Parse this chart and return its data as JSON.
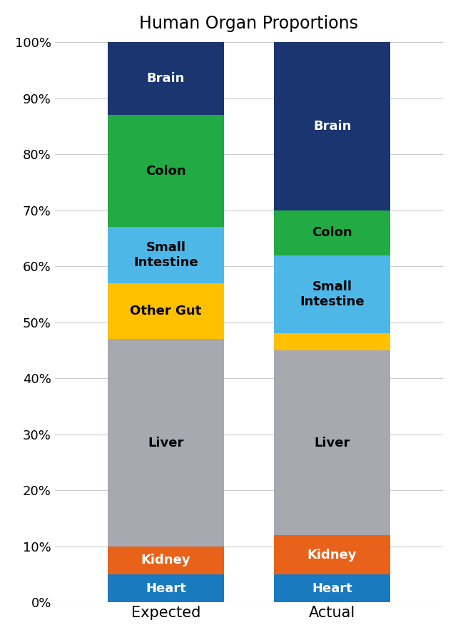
{
  "title": "Human Organ Proportions",
  "categories": [
    "Expected",
    "Actual"
  ],
  "segments": [
    {
      "name": "Heart",
      "color": "#1a7abf",
      "values": [
        5,
        5
      ],
      "text_color": [
        "white",
        "white"
      ]
    },
    {
      "name": "Kidney",
      "color": "#e8621a",
      "values": [
        5,
        7
      ],
      "text_color": [
        "white",
        "white"
      ]
    },
    {
      "name": "Liver",
      "color": "#a8a8b0",
      "values": [
        37,
        33
      ],
      "text_color": [
        "black",
        "black"
      ]
    },
    {
      "name": "Other Gut",
      "color": "#ffc000",
      "values": [
        10,
        3
      ],
      "text_color": [
        "black",
        "black"
      ]
    },
    {
      "name": "Small\nIntestine",
      "color": "#4db8e8",
      "values": [
        10,
        14
      ],
      "text_color": [
        "black",
        "black"
      ]
    },
    {
      "name": "Colon",
      "color": "#22aa44",
      "values": [
        20,
        8
      ],
      "text_color": [
        "black",
        "black"
      ]
    },
    {
      "name": "Brain",
      "color": "#1a3570",
      "values": [
        13,
        30
      ],
      "text_color": [
        "white",
        "white"
      ]
    }
  ],
  "ylabel_ticks": [
    0,
    10,
    20,
    30,
    40,
    50,
    60,
    70,
    80,
    90,
    100
  ],
  "bar_width": 0.42,
  "title_fontsize": 17,
  "label_fontsize": 13,
  "tick_fontsize": 13,
  "axis_label_fontsize": 15,
  "background_color": "#ffffff",
  "grid_color": "#cccccc"
}
